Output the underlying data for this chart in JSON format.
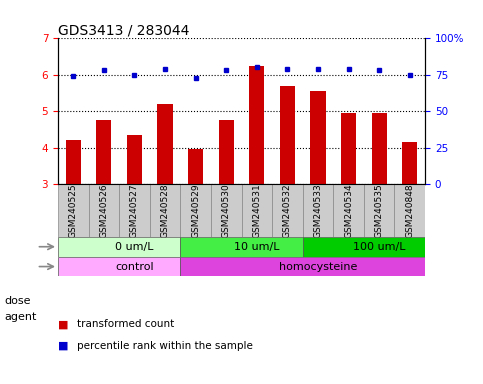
{
  "title": "GDS3413 / 283044",
  "samples": [
    "GSM240525",
    "GSM240526",
    "GSM240527",
    "GSM240528",
    "GSM240529",
    "GSM240530",
    "GSM240531",
    "GSM240532",
    "GSM240533",
    "GSM240534",
    "GSM240535",
    "GSM240848"
  ],
  "transformed_count": [
    4.2,
    4.75,
    4.35,
    5.2,
    3.95,
    4.75,
    6.25,
    5.7,
    5.55,
    4.95,
    4.95,
    4.15
  ],
  "percentile_rank": [
    74,
    78,
    75,
    79,
    73,
    78,
    80,
    79,
    79,
    79,
    78,
    75
  ],
  "ylim_left": [
    3,
    7
  ],
  "ylim_right": [
    0,
    100
  ],
  "yticks_left": [
    3,
    4,
    5,
    6,
    7
  ],
  "yticks_right": [
    0,
    25,
    50,
    75,
    100
  ],
  "ytick_labels_right": [
    "0",
    "25",
    "50",
    "75",
    "100%"
  ],
  "bar_color": "#cc0000",
  "dot_color": "#0000cc",
  "bar_bottom": 3,
  "dose_groups": [
    {
      "label": "0 um/L",
      "start": 0,
      "end": 4,
      "color": "#ccffcc"
    },
    {
      "label": "10 um/L",
      "start": 4,
      "end": 8,
      "color": "#44ee44"
    },
    {
      "label": "100 um/L",
      "start": 8,
      "end": 12,
      "color": "#00cc00"
    }
  ],
  "agent_groups": [
    {
      "label": "control",
      "start": 0,
      "end": 4,
      "color": "#ffaaff"
    },
    {
      "label": "homocysteine",
      "start": 4,
      "end": 12,
      "color": "#dd44dd"
    }
  ],
  "legend_items": [
    {
      "label": "transformed count",
      "color": "#cc0000"
    },
    {
      "label": "percentile rank within the sample",
      "color": "#0000cc"
    }
  ],
  "dose_label": "dose",
  "agent_label": "agent",
  "title_fontsize": 10,
  "tick_fontsize": 7.5,
  "sample_fontsize": 6.5,
  "label_fontsize": 8,
  "group_label_fontsize": 8
}
